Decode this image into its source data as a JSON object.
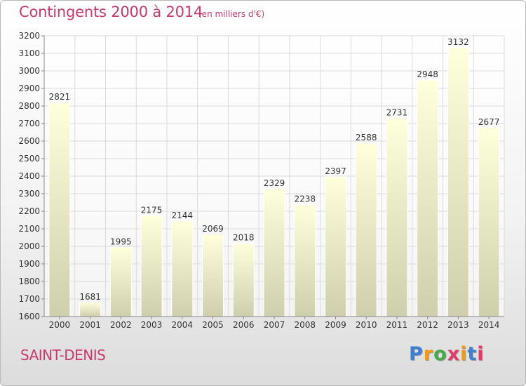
{
  "header": {
    "title": "Contingents 2000 à 2014",
    "subtitle": "(en milliers d'€)"
  },
  "footer": {
    "city": "SAINT-DENIS",
    "logo": {
      "l1": "P",
      "l2": "r",
      "l3": "o",
      "l4": "x",
      "l5": "i",
      "l6": "t",
      "l7": "i"
    }
  },
  "chart_data": {
    "type": "bar",
    "title": "Contingents 2000 à 2014",
    "categories": [
      "2000",
      "2001",
      "2002",
      "2003",
      "2004",
      "2005",
      "2006",
      "2007",
      "2008",
      "2009",
      "2010",
      "2011",
      "2012",
      "2013",
      "2014"
    ],
    "values": [
      2821,
      1681,
      1995,
      2175,
      2144,
      2069,
      2018,
      2329,
      2238,
      2397,
      2588,
      2731,
      2948,
      3132,
      2677
    ],
    "ylim": [
      1600,
      3200
    ],
    "yticks": [
      1600,
      1700,
      1800,
      1900,
      2000,
      2100,
      2200,
      2300,
      2400,
      2500,
      2600,
      2700,
      2800,
      2900,
      3000,
      3100,
      3200
    ],
    "grid": true,
    "xlabel": "",
    "ylabel": "",
    "colors": {
      "bar_top": "#ffffdc",
      "bar_bottom": "#cfcfae",
      "grid": "#dadada",
      "text": "#333333"
    }
  }
}
